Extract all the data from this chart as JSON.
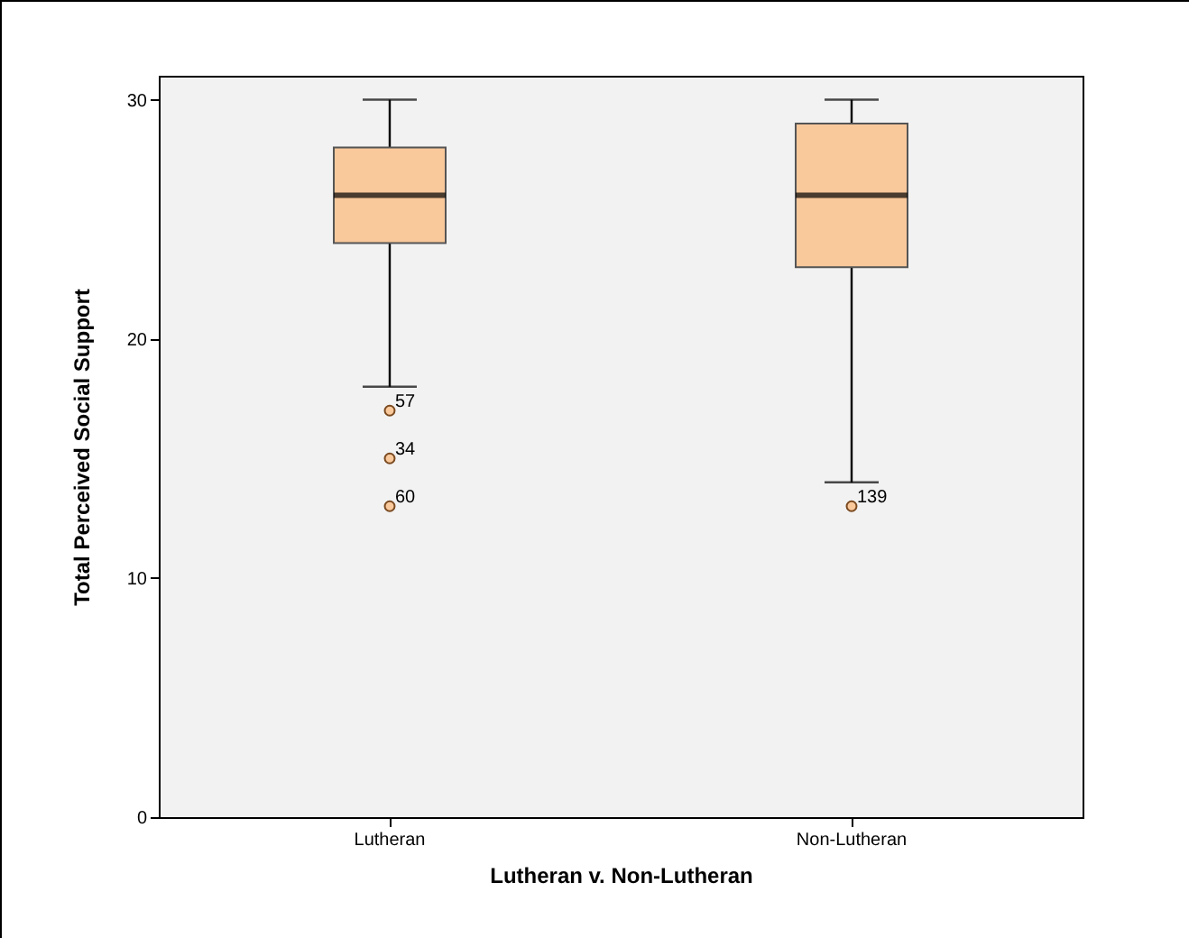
{
  "chart_data": {
    "type": "box",
    "xlabel": "Lutheran v. Non-Lutheran",
    "ylabel": "Total Perceived Social Support",
    "categories": [
      "Lutheran",
      "Non-Lutheran"
    ],
    "color": "#f9c89b",
    "ylim": [
      0,
      31
    ],
    "yticks": [
      0,
      10,
      20,
      30
    ],
    "boxes": [
      {
        "low": 18,
        "q1": 24,
        "median": 26,
        "q3": 28,
        "high": 30,
        "outliers": [
          17,
          15,
          13
        ]
      },
      {
        "low": 14,
        "q1": 23,
        "median": 26,
        "q3": 29,
        "high": 30,
        "outliers": [
          13
        ]
      }
    ],
    "annotations": [
      "57",
      "34",
      "60",
      "139"
    ]
  }
}
